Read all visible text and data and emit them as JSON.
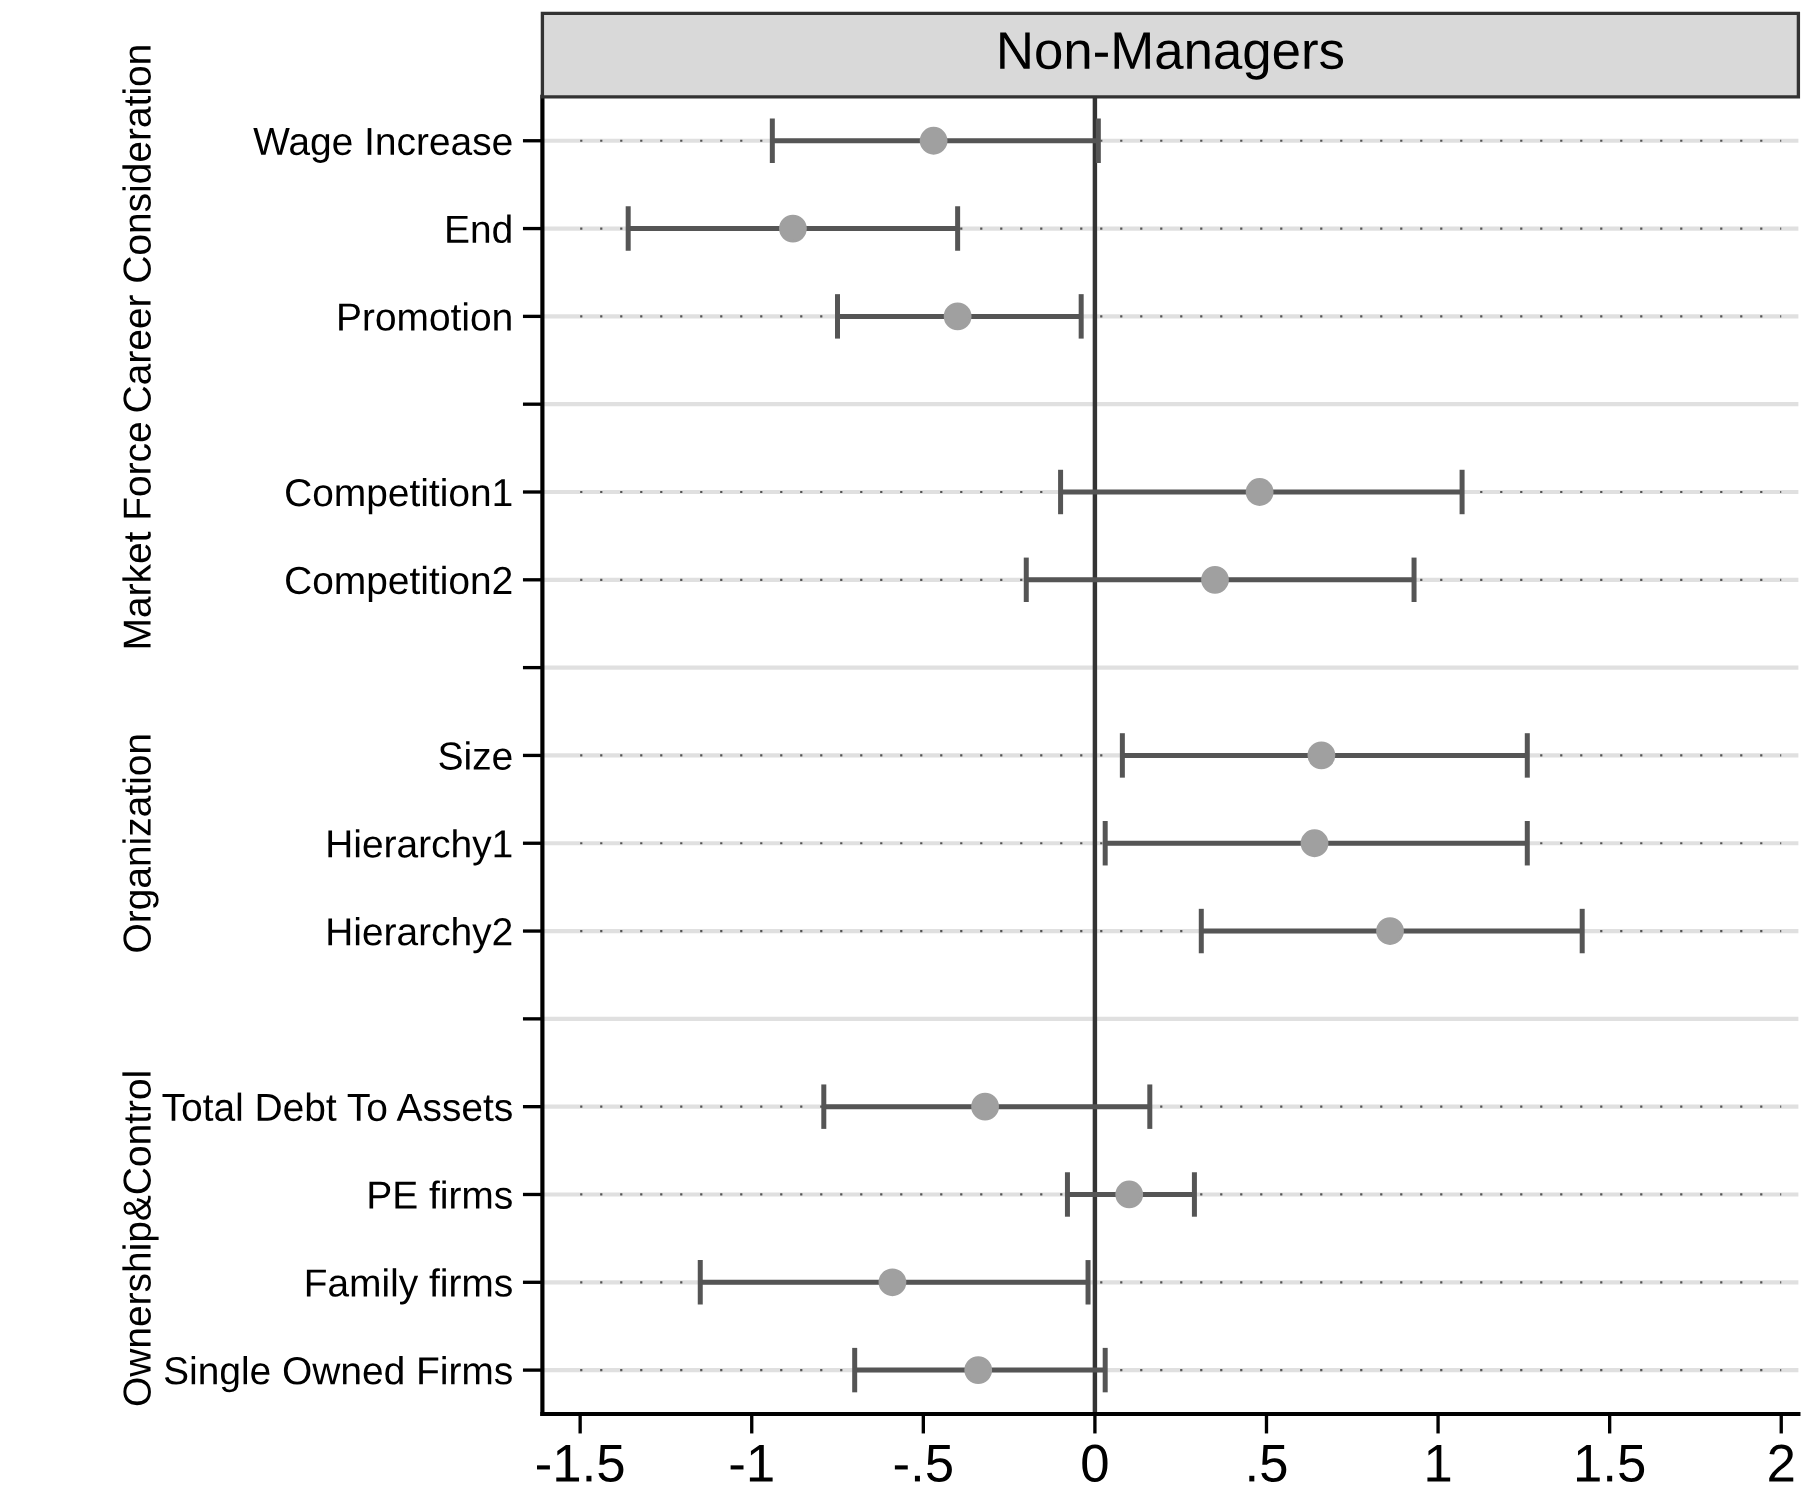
{
  "chart_data": {
    "type": "scatter",
    "orientation": "horizontal",
    "title": "Non-Managers",
    "categories": [
      "Wage Increase",
      "End",
      "Promotion",
      null,
      "Competition1",
      "Competition2",
      null,
      "Size",
      "Hierarchy1",
      "Hierarchy2",
      null,
      "Total Debt To Assets",
      "PE firms",
      "Family firms",
      "Single Owned Firms"
    ],
    "series": [
      {
        "color": "#a0a0a0",
        "values": [
          -0.47,
          -0.88,
          -0.4,
          null,
          0.48,
          0.35,
          null,
          0.66,
          0.64,
          0.86,
          null,
          -0.32,
          0.1,
          -0.59,
          -0.34
        ],
        "errors": [
          [
            -0.94,
            0.01
          ],
          [
            -1.36,
            -0.4
          ],
          [
            -0.75,
            -0.04
          ],
          null,
          [
            -0.1,
            1.07
          ],
          [
            -0.2,
            0.93
          ],
          null,
          [
            0.08,
            1.26
          ],
          [
            0.03,
            1.26
          ],
          [
            0.31,
            1.42
          ],
          null,
          [
            -0.79,
            0.16
          ],
          [
            -0.08,
            0.29
          ],
          [
            -1.15,
            -0.02
          ],
          [
            -0.7,
            0.03
          ]
        ]
      }
    ],
    "annotations": [
      "Career Consideration",
      "Market Force",
      "Organization",
      "Ownership&Control"
    ],
    "xlim": [
      -1.61,
      2.05
    ],
    "xticks": [
      -1.5,
      {
        "value": -1,
        "label": "-1"
      },
      {
        "value": -0.5,
        "label": "-.5"
      },
      0,
      {
        "value": 0.5,
        "label": ".5"
      },
      1,
      1.5,
      2
    ],
    "ref_lines": [
      {
        "axis": "x",
        "value": 0,
        "color": "#333333"
      }
    ],
    "marker": "circle",
    "grid": "y"
  }
}
